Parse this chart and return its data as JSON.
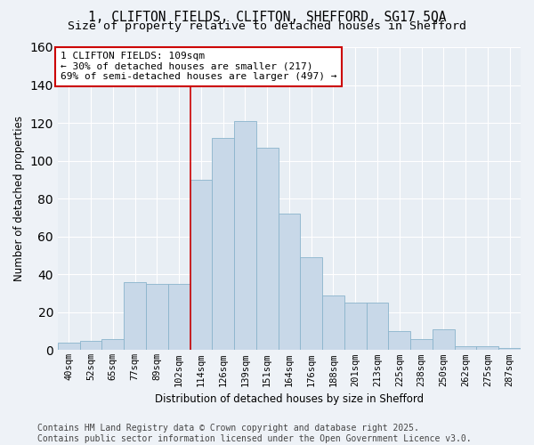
{
  "title1": "1, CLIFTON FIELDS, CLIFTON, SHEFFORD, SG17 5QA",
  "title2": "Size of property relative to detached houses in Shefford",
  "xlabel": "Distribution of detached houses by size in Shefford",
  "ylabel": "Number of detached properties",
  "bar_color": "#c8d8e8",
  "bar_edge_color": "#8ab4cc",
  "background_color": "#e8eef4",
  "grid_color": "#ffffff",
  "annotation_text": "1 CLIFTON FIELDS: 109sqm\n← 30% of detached houses are smaller (217)\n69% of semi-detached houses are larger (497) →",
  "vline_color": "#cc0000",
  "vline_bin_index": 5,
  "categories": [
    "40sqm",
    "52sqm",
    "65sqm",
    "77sqm",
    "89sqm",
    "102sqm",
    "114sqm",
    "126sqm",
    "139sqm",
    "151sqm",
    "164sqm",
    "176sqm",
    "188sqm",
    "201sqm",
    "213sqm",
    "225sqm",
    "238sqm",
    "250sqm",
    "262sqm",
    "275sqm",
    "287sqm"
  ],
  "values": [
    4,
    5,
    6,
    36,
    35,
    35,
    90,
    112,
    121,
    107,
    72,
    49,
    29,
    25,
    25,
    10,
    6,
    11,
    2,
    2,
    1
  ],
  "ylim": [
    0,
    160
  ],
  "yticks": [
    0,
    20,
    40,
    60,
    80,
    100,
    120,
    140,
    160
  ],
  "footer": "Contains HM Land Registry data © Crown copyright and database right 2025.\nContains public sector information licensed under the Open Government Licence v3.0.",
  "title_fontsize": 10.5,
  "subtitle_fontsize": 9.5,
  "axis_label_fontsize": 8.5,
  "tick_fontsize": 7.5,
  "annotation_fontsize": 8,
  "footer_fontsize": 7
}
